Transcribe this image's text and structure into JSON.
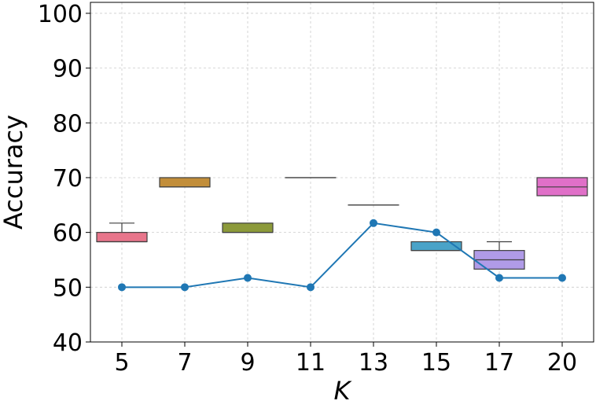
{
  "chart_data": {
    "type": "box",
    "xlabel": "K",
    "ylabel": "Accuracy",
    "ylim": [
      40,
      102
    ],
    "yticks": [
      40,
      50,
      60,
      70,
      80,
      90,
      100
    ],
    "categories": [
      "5",
      "7",
      "9",
      "11",
      "13",
      "15",
      "17",
      "20"
    ],
    "grid": true,
    "boxes": [
      {
        "category": "5",
        "whisker_low": 58.3,
        "q1": 58.3,
        "median": 58.3,
        "q3": 60.0,
        "whisker_high": 61.7,
        "color": "#e8758b"
      },
      {
        "category": "7",
        "whisker_low": 68.3,
        "q1": 68.3,
        "median": 68.3,
        "q3": 70.0,
        "whisker_high": 70.0,
        "color": "#c28e3a"
      },
      {
        "category": "9",
        "whisker_low": 60.0,
        "q1": 60.0,
        "median": 60.0,
        "q3": 61.7,
        "whisker_high": 61.7,
        "color": "#8c9a3a"
      },
      {
        "category": "11",
        "whisker_low": 70.0,
        "q1": 70.0,
        "median": 70.0,
        "q3": 70.0,
        "whisker_high": 70.0,
        "color": "#3aa676"
      },
      {
        "category": "13",
        "whisker_low": 65.0,
        "q1": 65.0,
        "median": 65.0,
        "q3": 65.0,
        "whisker_high": 65.0,
        "color": "#3aa6a0"
      },
      {
        "category": "15",
        "whisker_low": 56.7,
        "q1": 56.7,
        "median": 56.7,
        "q3": 58.3,
        "whisker_high": 58.3,
        "color": "#4aa3c8"
      },
      {
        "category": "17",
        "whisker_low": 53.3,
        "q1": 53.3,
        "median": 55.0,
        "q3": 56.7,
        "whisker_high": 58.3,
        "color": "#b09be8"
      },
      {
        "category": "20",
        "whisker_low": 66.7,
        "q1": 66.7,
        "median": 68.3,
        "q3": 70.0,
        "whisker_high": 70.0,
        "color": "#e070c8"
      }
    ],
    "series": [
      {
        "type": "line",
        "color": "#1f77b4",
        "values": [
          50.0,
          50.0,
          51.7,
          50.0,
          61.7,
          60.0,
          51.7,
          51.7
        ]
      }
    ]
  }
}
